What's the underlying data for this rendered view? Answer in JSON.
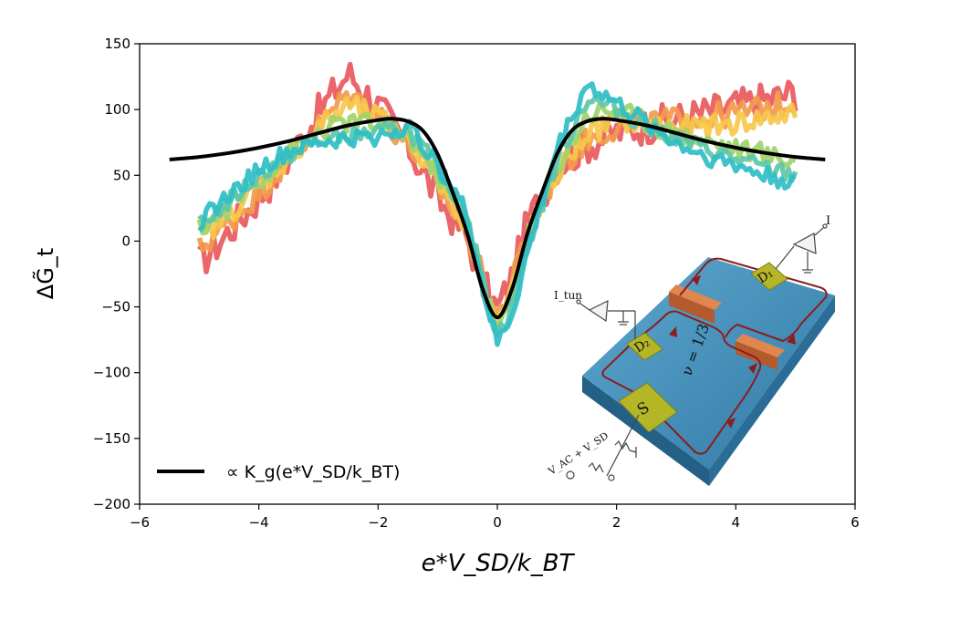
{
  "chart_data": {
    "type": "line",
    "xlabel": "e*V_SD/k_BT",
    "ylabel": "ΔG̃_t",
    "xlim": [
      -6,
      6
    ],
    "ylim": [
      -200,
      150
    ],
    "x_ticks": [
      "−6",
      "−4",
      "−2",
      "0",
      "2",
      "4",
      "6"
    ],
    "y_ticks": [
      "150",
      "100",
      "50",
      "0",
      "−50",
      "−100",
      "−150",
      "−200"
    ],
    "x_tick_values": [
      -6,
      -4,
      -2,
      0,
      2,
      4,
      6
    ],
    "y_tick_values": [
      150,
      100,
      50,
      0,
      -50,
      -100,
      -150,
      -200
    ],
    "grid": false,
    "legend": {
      "placement": "bottom-left",
      "entries": [
        {
          "label": "∝ K_g(e*V_SD/k_BT)",
          "color": "#000000"
        }
      ]
    },
    "fit": {
      "color": "#000000",
      "x": [
        -5.5,
        -5,
        -4.5,
        -4,
        -3.5,
        -3,
        -2.5,
        -2,
        -1.75,
        -1.5,
        -1.25,
        -1,
        -0.75,
        -0.5,
        -0.25,
        0,
        0.25,
        0.5,
        0.75,
        1,
        1.25,
        1.5,
        1.75,
        2,
        2.5,
        3,
        3.5,
        4,
        4.5,
        5,
        5.5
      ],
      "y": [
        62,
        64,
        67,
        71,
        76,
        82,
        88,
        92,
        93,
        91,
        84,
        66,
        37,
        5,
        -36,
        -58,
        -36,
        5,
        37,
        66,
        84,
        91,
        93,
        92,
        88,
        82,
        76,
        71,
        67,
        64,
        62
      ]
    },
    "series": [
      {
        "color": "#e8595d",
        "offset": 9,
        "noise": 14,
        "x": [
          -5,
          -4.5,
          -4,
          -3.5,
          -3,
          -2.5,
          -2,
          -1.5,
          -1,
          -0.5,
          -0.25,
          0,
          0.25,
          0.5,
          1,
          1.5,
          2,
          2.5,
          3,
          3.5,
          4,
          4.5,
          5
        ],
        "y": [
          -20,
          5,
          30,
          60,
          95,
          125,
          100,
          70,
          30,
          0,
          -35,
          -55,
          -30,
          10,
          55,
          70,
          80,
          85,
          90,
          95,
          100,
          105,
          110
        ]
      },
      {
        "color": "#f39a4b",
        "offset": 7,
        "noise": 10,
        "x": [
          -5,
          -4.5,
          -4,
          -3.5,
          -3,
          -2.5,
          -2,
          -1.5,
          -1,
          -0.5,
          -0.25,
          0,
          0.25,
          0.5,
          1,
          1.5,
          2,
          2.5,
          3,
          3.5,
          4,
          4.5,
          5
        ],
        "y": [
          -8,
          12,
          35,
          60,
          85,
          110,
          95,
          72,
          40,
          5,
          -30,
          -60,
          -35,
          5,
          50,
          75,
          85,
          88,
          90,
          92,
          95,
          100,
          102
        ]
      },
      {
        "color": "#f6c84a",
        "offset": 5,
        "noise": 9,
        "x": [
          -5,
          -4.5,
          -4,
          -3.5,
          -3,
          -2.5,
          -2,
          -1.5,
          -1,
          -0.5,
          -0.25,
          0,
          0.25,
          0.5,
          1,
          1.5,
          2,
          2.5,
          3,
          3.5,
          4,
          4.5,
          5
        ],
        "y": [
          0,
          20,
          40,
          62,
          85,
          102,
          92,
          78,
          45,
          10,
          -30,
          -65,
          -40,
          0,
          50,
          80,
          90,
          88,
          85,
          85,
          88,
          92,
          95
        ]
      },
      {
        "color": "#9ed46a",
        "offset": 3,
        "noise": 8,
        "x": [
          -5,
          -4.5,
          -4,
          -3.5,
          -3,
          -2.5,
          -2,
          -1.5,
          -1,
          -0.5,
          -0.25,
          0,
          0.25,
          0.5,
          1,
          1.5,
          2,
          2.5,
          3,
          3.5,
          4,
          4.5,
          5
        ],
        "y": [
          8,
          25,
          45,
          65,
          82,
          90,
          88,
          80,
          50,
          15,
          -30,
          -70,
          -45,
          0,
          55,
          95,
          100,
          90,
          80,
          75,
          70,
          65,
          60
        ]
      },
      {
        "color": "#5cc7a8",
        "offset": 1,
        "noise": 7,
        "x": [
          -5,
          -4.5,
          -4,
          -3.5,
          -3,
          -2.5,
          -2,
          -1.5,
          -1,
          -0.5,
          -0.25,
          0,
          0.25,
          0.5,
          1,
          1.5,
          2,
          2.5,
          3,
          3.5,
          4,
          4.5,
          5
        ],
        "y": [
          12,
          30,
          50,
          65,
          75,
          80,
          82,
          85,
          55,
          20,
          -30,
          -72,
          -50,
          -5,
          60,
          108,
          100,
          88,
          78,
          70,
          62,
          55,
          50
        ]
      },
      {
        "color": "#2fbec6",
        "offset": -1,
        "noise": 7,
        "x": [
          -5,
          -4.5,
          -4,
          -3.5,
          -3,
          -2.5,
          -2,
          -1.5,
          -1,
          -0.5,
          -0.25,
          0,
          0.25,
          0.5,
          1,
          1.5,
          2,
          2.5,
          3,
          3.5,
          4,
          4.5,
          5
        ],
        "y": [
          15,
          35,
          55,
          68,
          75,
          78,
          80,
          88,
          60,
          20,
          -35,
          -78,
          -55,
          -10,
          70,
          120,
          105,
          90,
          75,
          65,
          58,
          50,
          45
        ]
      }
    ]
  },
  "inset": {
    "tunnel_current_label": "I_tun",
    "output_current_label": "I",
    "filling_factor_label": "ν = 1/3",
    "contact_source_label": "S",
    "contact_d1_label": "D₁",
    "contact_d2_label": "D₂",
    "source_voltage_label": "V_AC + V_SD",
    "substrate_color": "#3e8ab4",
    "contact_color": "#b5b528",
    "gate_color": "#cc6f3a",
    "edge_color": "#8c1d1d"
  }
}
